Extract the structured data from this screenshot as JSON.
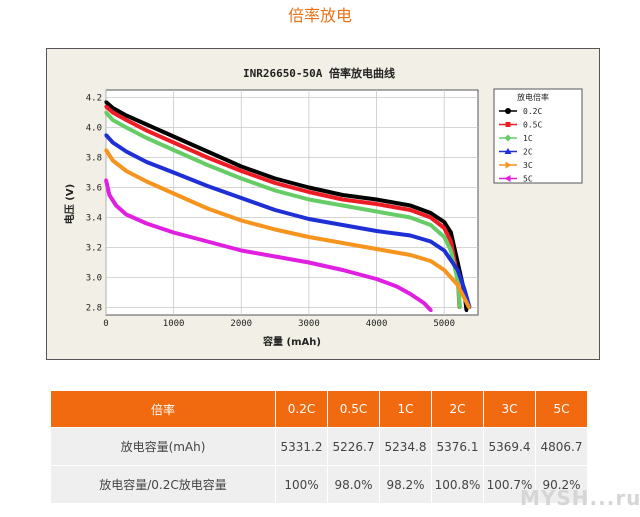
{
  "page": {
    "title": "倍率放电",
    "watermark": "MYSH...ru"
  },
  "chart_data": {
    "type": "line",
    "title": "INR26650-50A 倍率放电曲线",
    "xlabel": "容量 (mAh)",
    "ylabel": "电压 (V)",
    "xlim": [
      0,
      5500
    ],
    "ylim": [
      2.75,
      4.25
    ],
    "xticks": [
      0,
      1000,
      2000,
      3000,
      4000,
      5000
    ],
    "yticks": [
      2.8,
      3.0,
      3.2,
      3.4,
      3.6,
      3.8,
      4.0,
      4.2
    ],
    "grid": true,
    "legend_title": "放电倍率",
    "legend_position": "right",
    "series": [
      {
        "name": "0.2C",
        "color": "#000000",
        "marker": "circle",
        "x": [
          0,
          100,
          300,
          600,
          1000,
          1500,
          2000,
          2500,
          3000,
          3500,
          4000,
          4500,
          4800,
          5000,
          5100,
          5200,
          5300,
          5330
        ],
        "y": [
          4.17,
          4.13,
          4.08,
          4.02,
          3.94,
          3.84,
          3.74,
          3.66,
          3.6,
          3.55,
          3.52,
          3.48,
          3.43,
          3.37,
          3.3,
          3.1,
          2.9,
          2.78
        ]
      },
      {
        "name": "0.5C",
        "color": "#ee1c24",
        "marker": "square",
        "x": [
          0,
          100,
          300,
          600,
          1000,
          1500,
          2000,
          2500,
          3000,
          3500,
          4000,
          4500,
          4800,
          5000,
          5100,
          5200,
          5226
        ],
        "y": [
          4.14,
          4.1,
          4.05,
          3.98,
          3.9,
          3.8,
          3.71,
          3.63,
          3.57,
          3.52,
          3.49,
          3.45,
          3.4,
          3.33,
          3.24,
          3.0,
          2.8
        ]
      },
      {
        "name": "1C",
        "color": "#66cc66",
        "marker": "diamond",
        "x": [
          0,
          100,
          300,
          600,
          1000,
          1500,
          2000,
          2500,
          3000,
          3500,
          4000,
          4500,
          4800,
          5000,
          5100,
          5200,
          5234
        ],
        "y": [
          4.1,
          4.05,
          4.0,
          3.93,
          3.85,
          3.75,
          3.66,
          3.58,
          3.52,
          3.48,
          3.44,
          3.4,
          3.35,
          3.27,
          3.18,
          2.98,
          2.8
        ]
      },
      {
        "name": "2C",
        "color": "#1f2fd6",
        "marker": "triangle-up",
        "x": [
          0,
          100,
          300,
          600,
          1000,
          1500,
          2000,
          2500,
          3000,
          3500,
          4000,
          4500,
          4800,
          5000,
          5200,
          5300,
          5376
        ],
        "y": [
          3.95,
          3.9,
          3.84,
          3.77,
          3.7,
          3.61,
          3.53,
          3.45,
          3.39,
          3.35,
          3.31,
          3.28,
          3.24,
          3.18,
          3.05,
          2.92,
          2.8
        ]
      },
      {
        "name": "3C",
        "color": "#f7941d",
        "marker": "triangle-right",
        "x": [
          0,
          100,
          300,
          600,
          1000,
          1500,
          2000,
          2500,
          3000,
          3500,
          4000,
          4500,
          4800,
          5000,
          5200,
          5300,
          5369
        ],
        "y": [
          3.85,
          3.78,
          3.71,
          3.64,
          3.56,
          3.46,
          3.38,
          3.32,
          3.27,
          3.23,
          3.19,
          3.15,
          3.11,
          3.05,
          2.95,
          2.86,
          2.8
        ]
      },
      {
        "name": "5C",
        "color": "#e020e0",
        "marker": "triangle-left",
        "x": [
          0,
          50,
          150,
          300,
          600,
          1000,
          1500,
          2000,
          2500,
          3000,
          3500,
          4000,
          4300,
          4500,
          4700,
          4806
        ],
        "y": [
          3.65,
          3.55,
          3.48,
          3.42,
          3.36,
          3.3,
          3.24,
          3.18,
          3.14,
          3.1,
          3.05,
          2.99,
          2.94,
          2.89,
          2.83,
          2.78
        ]
      }
    ]
  },
  "table": {
    "header": [
      "倍率",
      "0.2C",
      "0.5C",
      "1C",
      "2C",
      "3C",
      "5C"
    ],
    "rows": [
      [
        "放电容量(mAh)",
        "5331.2",
        "5226.7",
        "5234.8",
        "5376.1",
        "5369.4",
        "4806.7"
      ],
      [
        "放电容量/0.2C放电容量",
        "100%",
        "98.0%",
        "98.2%",
        "100.8%",
        "100.7%",
        "90.2%"
      ]
    ]
  }
}
